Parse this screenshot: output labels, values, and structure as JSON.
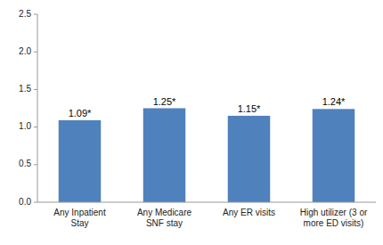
{
  "chart_data": {
    "type": "bar",
    "categories": [
      "Any Inpatient\nStay",
      "Any Medicare\nSNF stay",
      "Any ER visits",
      "High utilizer (3 or\nmore ED visits)"
    ],
    "values": [
      1.09,
      1.25,
      1.15,
      1.24
    ],
    "value_labels": [
      "1.09*",
      "1.25*",
      "1.15*",
      "1.24*"
    ],
    "data_labels": true,
    "color": "#4f81bd",
    "ylim": [
      0,
      2.5
    ],
    "yticks": [
      {
        "value": 0,
        "label": "0.0"
      },
      0.5,
      {
        "value": 1,
        "label": "1.0"
      },
      1.5,
      {
        "value": 2,
        "label": "2.0"
      },
      2.5
    ],
    "grid": false
  }
}
